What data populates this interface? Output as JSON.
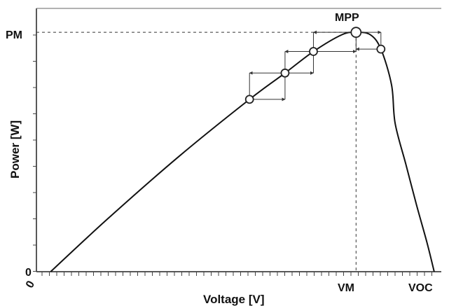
{
  "chart_data": {
    "type": "line",
    "title": "",
    "xlabel": "Voltage [V]",
    "ylabel": "Power [W]",
    "x_origin_label": "0",
    "y_origin_label": "0",
    "x_tick_labels": [
      "VM",
      "VOC"
    ],
    "y_tick_labels": [
      "PM"
    ],
    "annotations": [
      "MPP"
    ],
    "xlim": [
      0,
      1.14
    ],
    "ylim": [
      0,
      1.1
    ],
    "grid": false,
    "series": [
      {
        "values_description": "",
        "x": [
          0.04,
          0.2,
          0.4,
          0.6,
          0.7,
          0.78,
          0.86,
          0.9,
          0.94,
          0.97,
          1.0,
          1.01,
          1.04,
          1.07,
          1.1,
          1.12
        ],
        "y": [
          0.0,
          0.22,
          0.48,
          0.72,
          0.83,
          0.92,
          0.99,
          1.0,
          0.99,
          0.93,
          0.78,
          0.62,
          0.45,
          0.28,
          0.12,
          0.0
        ]
      }
    ],
    "operating_points": [
      {
        "x": 0.6,
        "y": 0.72
      },
      {
        "x": 0.7,
        "y": 0.83
      },
      {
        "x": 0.78,
        "y": 0.92
      },
      {
        "x": 0.9,
        "y": 1.0
      },
      {
        "x": 0.97,
        "y": 0.93
      }
    ],
    "mpp": {
      "x": 0.9,
      "y": 1.0
    }
  }
}
